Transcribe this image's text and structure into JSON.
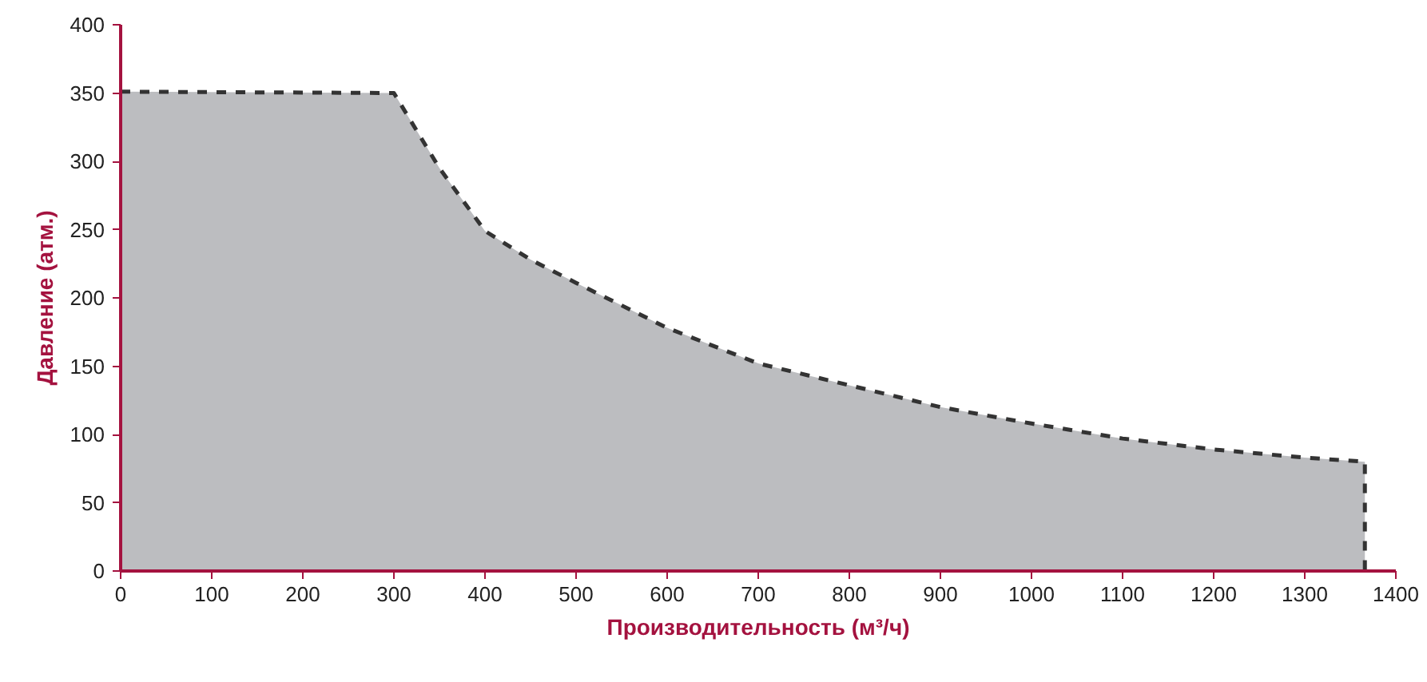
{
  "chart_data": {
    "type": "area",
    "xlabel": "Производительность (м³/ч)",
    "ylabel": "Давление (атм.)",
    "x": [
      0,
      300,
      350,
      400,
      450,
      500,
      600,
      700,
      800,
      900,
      1000,
      1100,
      1200,
      1300,
      1366,
      1366
    ],
    "series": [
      {
        "color": "#bcbdc0",
        "values": [
          351,
          350,
          295,
          249,
          228,
          211,
          178,
          152,
          136,
          120,
          108,
          97,
          89,
          83,
          80,
          0
        ]
      }
    ],
    "xlim": [
      0,
      1400
    ],
    "ylim": [
      0,
      400
    ],
    "xticks": [
      0,
      100,
      200,
      300,
      400,
      500,
      600,
      700,
      800,
      900,
      1000,
      1100,
      1200,
      1300,
      1400
    ],
    "yticks": [
      0,
      50,
      100,
      150,
      200,
      250,
      300,
      350,
      400
    ],
    "grid": false,
    "line_style": "dashed"
  }
}
